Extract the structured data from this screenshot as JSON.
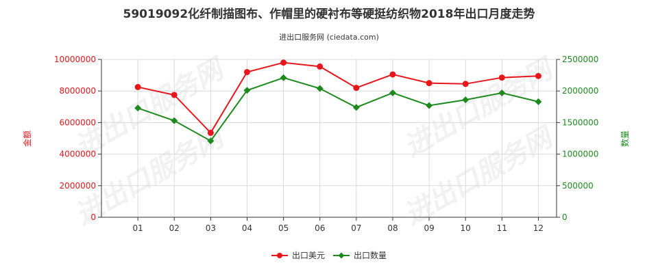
{
  "chart_data": {
    "type": "line",
    "title": "59019092化纤制描图布、作帽里的硬衬布等硬挺纺织物2018年出口月度走势",
    "subtitle": "进出口服务网 (ciedata.com)",
    "watermark": "进出口服务网",
    "categories": [
      "01",
      "02",
      "03",
      "04",
      "05",
      "06",
      "07",
      "08",
      "09",
      "10",
      "11",
      "12"
    ],
    "left_axis": {
      "label": "金额",
      "ylim": [
        0,
        10000000
      ],
      "ticks": [
        0,
        2000000,
        4000000,
        6000000,
        8000000,
        10000000
      ],
      "tick_labels": [
        "0",
        "2000000",
        "4000000",
        "6000000",
        "8000000",
        "10000000"
      ],
      "color": "#e8161b"
    },
    "right_axis": {
      "label": "数量",
      "ylim": [
        0,
        2500000
      ],
      "ticks": [
        0,
        500000,
        1000000,
        1500000,
        2000000,
        2500000
      ],
      "tick_labels": [
        "0",
        "500000",
        "1000000",
        "1500000",
        "2000000",
        "2500000"
      ],
      "color": "#1e8a1e"
    },
    "series": [
      {
        "name": "出口美元",
        "axis": "left",
        "color": "#e8161b",
        "values": [
          8250000,
          7750000,
          5350000,
          9200000,
          9800000,
          9550000,
          8200000,
          9050000,
          8500000,
          8450000,
          8850000,
          8950000
        ]
      },
      {
        "name": "出口数量",
        "axis": "right",
        "color": "#1e8a1e",
        "values": [
          1730000,
          1530000,
          1210000,
          2010000,
          2210000,
          2040000,
          1740000,
          1970000,
          1770000,
          1860000,
          1970000,
          1830000
        ]
      }
    ],
    "grid": true,
    "legend_position": "bottom-center"
  }
}
